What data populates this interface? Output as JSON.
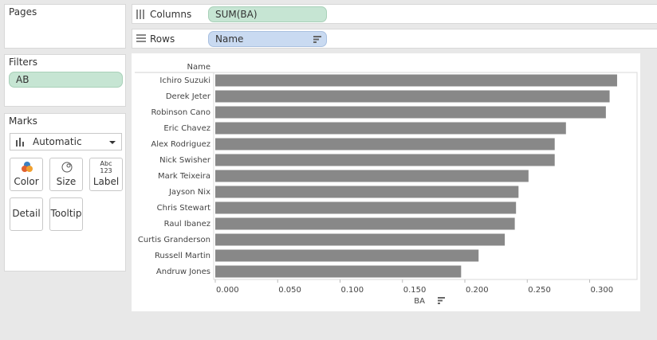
{
  "pages": {
    "title": "Pages"
  },
  "filters": {
    "title": "Filters",
    "pills": [
      "AB"
    ]
  },
  "marks": {
    "title": "Marks",
    "mark_type": "Automatic",
    "label_icon": [
      "Abc",
      "123"
    ],
    "buttons": [
      "Color",
      "Size",
      "Label",
      "Detail",
      "Tooltip"
    ]
  },
  "shelves": {
    "columns_label": "Columns",
    "columns_pill": "SUM(BA)",
    "rows_label": "Rows",
    "rows_pill": "Name"
  },
  "chart_data": {
    "type": "bar",
    "orientation": "horizontal",
    "row_header": "Name",
    "x_label": "BA",
    "categories": [
      "Ichiro Suzuki",
      "Derek Jeter",
      "Robinson Cano",
      "Eric Chavez",
      "Alex Rodriguez",
      "Nick Swisher",
      "Mark Teixeira",
      "Jayson Nix",
      "Chris Stewart",
      "Raul Ibanez",
      "Curtis Granderson",
      "Russell Martin",
      "Andruw Jones"
    ],
    "values": [
      0.322,
      0.316,
      0.313,
      0.281,
      0.272,
      0.272,
      0.251,
      0.243,
      0.241,
      0.24,
      0.232,
      0.211,
      0.197
    ],
    "color": "#888888",
    "xlim": [
      0,
      0.338
    ],
    "xticks": [
      {
        "value": 0,
        "label": "0.000"
      },
      {
        "value": 0.05,
        "label": "0.050"
      },
      {
        "value": 0.1,
        "label": "0.100"
      },
      {
        "value": 0.15,
        "label": "0.150"
      },
      {
        "value": 0.2,
        "label": "0.200"
      },
      {
        "value": 0.25,
        "label": "0.250"
      },
      {
        "value": 0.3,
        "label": "0.300"
      }
    ],
    "grid": false
  }
}
